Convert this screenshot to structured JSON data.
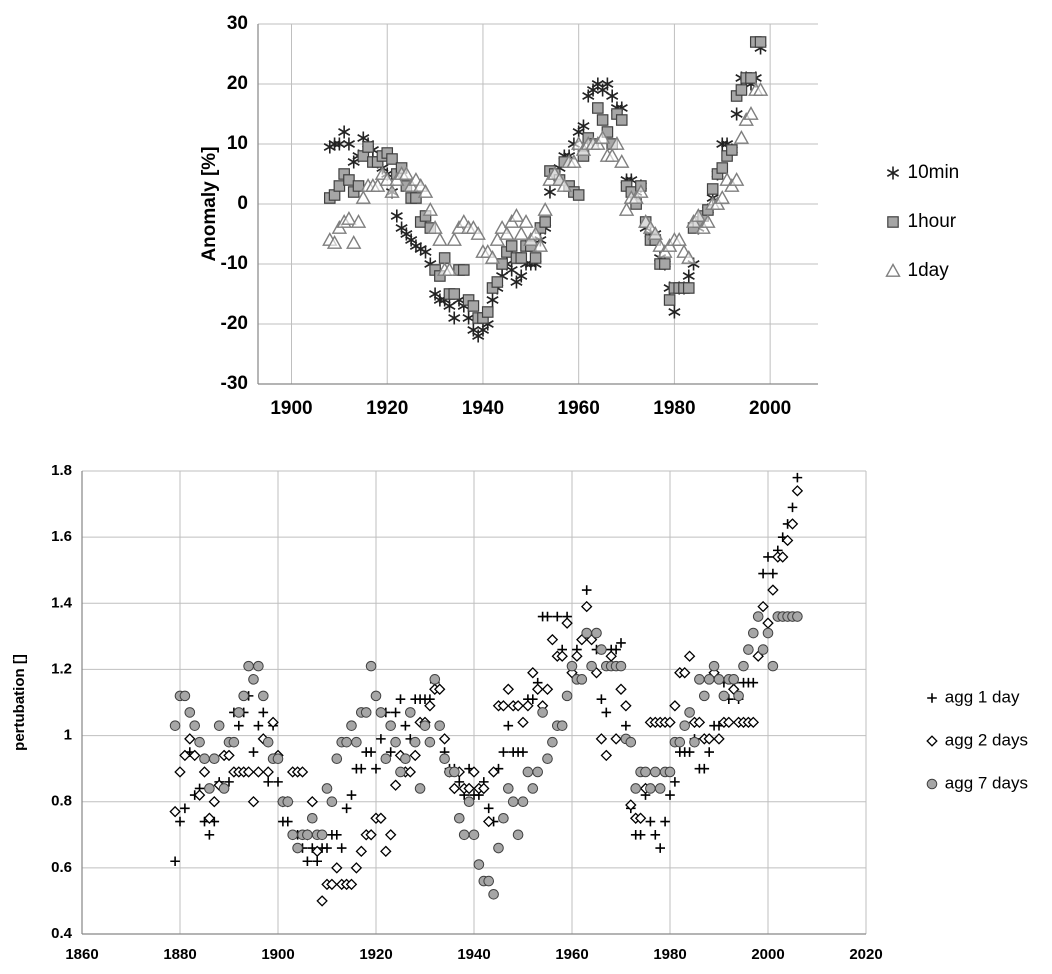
{
  "chart_data": [
    {
      "type": "scatter",
      "y_label": "Anomaly [%]",
      "x": [
        1908,
        1909,
        1910,
        1911,
        1912,
        1913,
        1914,
        1915,
        1916,
        1917,
        1918,
        1919,
        1920,
        1921,
        1922,
        1923,
        1924,
        1925,
        1926,
        1927,
        1928,
        1929,
        1930,
        1931,
        1932,
        1933,
        1934,
        1935,
        1936,
        1937,
        1938,
        1939,
        1940,
        1941,
        1942,
        1943,
        1944,
        1945,
        1946,
        1947,
        1948,
        1949,
        1950,
        1951,
        1952,
        1953,
        1954,
        1955,
        1956,
        1957,
        1958,
        1959,
        1960,
        1961,
        1962,
        1963,
        1964,
        1965,
        1966,
        1967,
        1968,
        1969,
        1970,
        1971,
        1972,
        1973,
        1974,
        1975,
        1976,
        1977,
        1978,
        1979,
        1980,
        1981,
        1982,
        1983,
        1984,
        1985,
        1986,
        1987,
        1988,
        1989,
        1990,
        1991,
        1992,
        1993,
        1994,
        1995,
        1996,
        1997,
        1998
      ],
      "series": [
        {
          "name": "10min",
          "color": "#222222",
          "marker": "asterisk",
          "values": [
            9.5,
            10,
            10,
            12,
            10,
            7,
            8,
            11,
            10,
            9,
            7,
            6,
            5,
            2,
            -2,
            -4,
            -5,
            -6,
            -7,
            -7.5,
            -8,
            -10,
            -15,
            -16,
            -16,
            -17,
            -19,
            -16,
            -17,
            -19,
            -21,
            -22,
            -21,
            -20,
            -16,
            -14,
            -12,
            -10,
            -11,
            -13,
            -12,
            -10,
            -10,
            -10,
            -6,
            -4,
            2,
            5,
            6,
            8,
            8,
            10,
            12,
            13,
            18,
            19,
            20,
            19,
            20,
            18,
            16,
            16,
            4,
            4,
            2,
            3,
            -4,
            -5,
            -5,
            -9,
            -10,
            -14,
            -18,
            -14,
            -14,
            -12,
            -10,
            -4,
            -2,
            -1,
            1,
            5,
            10,
            10,
            9,
            15,
            21,
            21,
            20,
            21,
            26
          ]
        },
        {
          "name": "1hour",
          "color": "#a6a6a6",
          "marker": "square",
          "values": [
            1,
            1.5,
            3,
            5,
            4,
            2,
            3,
            8,
            9.5,
            7,
            7,
            8,
            8.5,
            7.5,
            5,
            6,
            3,
            1,
            1,
            -3,
            -2,
            -4,
            -11,
            -12,
            -9,
            -15,
            -15,
            -11,
            -11,
            -16,
            -17,
            -19,
            -19,
            -18,
            -14,
            -13,
            -10,
            -8,
            -7,
            -9,
            -9,
            -7,
            -7,
            -9,
            -4,
            -3,
            5.5,
            5,
            4,
            7,
            3,
            2,
            1.5,
            8,
            11,
            10,
            16,
            14,
            12,
            10,
            15,
            14,
            3,
            2,
            0,
            3,
            -3,
            -6,
            -6,
            -10,
            -10,
            -16,
            -14,
            -14,
            -14,
            -14,
            -4,
            -3,
            -2,
            -1,
            2.5,
            5,
            6,
            8,
            9,
            18,
            19,
            21,
            21,
            27,
            27
          ]
        },
        {
          "name": "1day",
          "color": "#7f7f7f",
          "marker": "triangle",
          "values": [
            -6,
            -6.5,
            -4,
            -3,
            -2.5,
            -6.5,
            -3,
            1,
            3,
            3,
            3,
            5,
            4,
            2,
            4,
            5,
            5,
            3,
            4,
            3,
            2,
            -1,
            -4,
            -6,
            -11,
            -11,
            -6,
            -4,
            -3,
            -4,
            -4,
            -5,
            -8,
            -8,
            -9,
            -6,
            -4,
            -5,
            -3,
            -2,
            -5,
            -3,
            -6,
            -5,
            -7,
            -1,
            4,
            5,
            4,
            3,
            7,
            7,
            10,
            9,
            10,
            10,
            10,
            11,
            8,
            8,
            10,
            7,
            -1,
            1,
            1,
            2,
            -3,
            -4,
            -5,
            -7,
            -8,
            -7,
            -6,
            -6,
            -8,
            -9,
            -3,
            -2,
            -4,
            -3,
            0,
            0,
            1,
            4,
            3,
            4,
            11,
            14,
            15,
            19,
            19
          ]
        }
      ],
      "xlim": [
        1893,
        2010
      ],
      "xticks": [
        1900,
        1920,
        1940,
        1960,
        1980,
        2000
      ],
      "ylim": [
        -30,
        30
      ],
      "yticks": [
        -30,
        -20,
        -10,
        0,
        10,
        20,
        30
      ],
      "grid": true,
      "legend": "right"
    },
    {
      "type": "scatter",
      "y_label": "pertubation []",
      "x": [
        1879,
        1880,
        1881,
        1882,
        1883,
        1884,
        1885,
        1886,
        1887,
        1888,
        1889,
        1890,
        1891,
        1892,
        1893,
        1894,
        1895,
        1896,
        1897,
        1898,
        1899,
        1900,
        1901,
        1902,
        1903,
        1904,
        1905,
        1906,
        1907,
        1908,
        1909,
        1910,
        1911,
        1912,
        1913,
        1914,
        1915,
        1916,
        1917,
        1918,
        1919,
        1920,
        1921,
        1922,
        1923,
        1924,
        1925,
        1926,
        1927,
        1928,
        1929,
        1930,
        1931,
        1932,
        1933,
        1934,
        1935,
        1936,
        1937,
        1938,
        1939,
        1940,
        1941,
        1942,
        1943,
        1944,
        1945,
        1946,
        1947,
        1948,
        1949,
        1950,
        1951,
        1952,
        1953,
        1954,
        1955,
        1956,
        1957,
        1958,
        1959,
        1960,
        1961,
        1962,
        1963,
        1964,
        1965,
        1966,
        1967,
        1968,
        1969,
        1970,
        1971,
        1972,
        1973,
        1974,
        1975,
        1976,
        1977,
        1978,
        1979,
        1980,
        1981,
        1982,
        1983,
        1984,
        1985,
        1986,
        1987,
        1988,
        1989,
        1990,
        1991,
        1992,
        1993,
        1994,
        1995,
        1996,
        1997,
        1998,
        1999,
        2000,
        2001,
        2002,
        2003,
        2004,
        2005,
        2006
      ],
      "series": [
        {
          "name": "agg 1 day",
          "color": "#000000",
          "marker": "plus",
          "values": [
            0.62,
            0.74,
            0.78,
            0.95,
            0.82,
            0.84,
            0.74,
            0.7,
            0.74,
            0.86,
            0.94,
            0.86,
            1.07,
            1.03,
            1.07,
            1.12,
            0.95,
            1.03,
            1.07,
            0.86,
            1.03,
            0.86,
            0.74,
            0.74,
            0.7,
            0.7,
            0.66,
            0.62,
            0.66,
            0.62,
            0.66,
            0.66,
            0.7,
            0.7,
            0.66,
            0.78,
            0.82,
            0.9,
            0.9,
            0.95,
            0.95,
            0.9,
            0.99,
            1.07,
            0.95,
            1.07,
            1.11,
            1.03,
            0.99,
            1.11,
            1.11,
            1.11,
            1.11,
            1.16,
            1.03,
            0.95,
            0.9,
            0.9,
            0.86,
            0.82,
            0.9,
            0.82,
            0.82,
            0.86,
            0.78,
            0.74,
            0.9,
            0.95,
            1.03,
            0.95,
            0.95,
            0.95,
            1.11,
            1.11,
            1.16,
            1.36,
            1.36,
            1.29,
            1.36,
            1.26,
            1.36,
            1.19,
            1.26,
            1.29,
            1.44,
            1.29,
            1.26,
            1.11,
            1.07,
            1.26,
            1.26,
            1.28,
            1.03,
            0.78,
            0.7,
            0.7,
            0.82,
            0.74,
            0.7,
            0.66,
            0.74,
            0.82,
            0.86,
            0.95,
            0.95,
            0.95,
            0.99,
            0.9,
            0.9,
            0.95,
            1.03,
            1.03,
            1.16,
            1.11,
            1.16,
            1.11,
            1.16,
            1.16,
            1.16,
            1.36,
            1.49,
            1.54,
            1.49,
            1.56,
            1.6,
            1.64,
            1.69,
            1.78
          ]
        },
        {
          "name": "agg 2 days",
          "color": "#000000",
          "marker": "diamond",
          "values": [
            0.77,
            0.89,
            0.94,
            0.99,
            0.94,
            0.82,
            0.89,
            0.75,
            0.8,
            0.85,
            0.94,
            0.94,
            0.89,
            0.89,
            0.89,
            0.89,
            0.8,
            0.89,
            0.99,
            0.89,
            1.04,
            0.94,
            0.8,
            0.8,
            0.89,
            0.89,
            0.89,
            0.7,
            0.8,
            0.65,
            0.5,
            0.55,
            0.55,
            0.6,
            0.55,
            0.55,
            0.55,
            0.6,
            0.65,
            0.7,
            0.7,
            0.75,
            0.75,
            0.65,
            0.7,
            0.85,
            0.94,
            0.89,
            0.89,
            0.94,
            1.04,
            1.04,
            1.09,
            1.14,
            1.14,
            0.99,
            0.89,
            0.84,
            0.89,
            0.84,
            0.84,
            0.89,
            0.84,
            0.84,
            0.74,
            0.89,
            1.09,
            1.09,
            1.14,
            1.09,
            1.09,
            1.04,
            1.09,
            1.19,
            1.14,
            1.09,
            1.14,
            1.29,
            1.24,
            1.24,
            1.34,
            1.19,
            1.24,
            1.29,
            1.39,
            1.29,
            1.19,
            0.99,
            0.94,
            1.24,
            0.99,
            1.14,
            1.09,
            0.79,
            0.75,
            0.75,
            0.84,
            1.04,
            1.04,
            1.04,
            1.04,
            1.04,
            1.09,
            1.19,
            1.19,
            1.24,
            1.04,
            1.04,
            0.99,
            0.99,
            1.19,
            0.99,
            1.04,
            1.04,
            1.14,
            1.04,
            1.04,
            1.04,
            1.04,
            1.24,
            1.39,
            1.34,
            1.44,
            1.54,
            1.54,
            1.59,
            1.64,
            1.74
          ]
        },
        {
          "name": "agg 7 days",
          "color": "#a6a6a6",
          "marker": "circle",
          "values": [
            1.03,
            1.12,
            1.12,
            1.07,
            1.03,
            0.98,
            0.93,
            0.84,
            0.93,
            1.03,
            0.84,
            0.98,
            0.98,
            1.07,
            1.12,
            1.21,
            1.17,
            1.21,
            1.12,
            0.98,
            0.93,
            0.93,
            0.8,
            0.8,
            0.7,
            0.66,
            0.7,
            0.7,
            0.75,
            0.7,
            0.7,
            0.84,
            0.8,
            0.93,
            0.98,
            0.98,
            1.03,
            0.98,
            1.07,
            1.07,
            1.21,
            1.12,
            1.07,
            0.93,
            1.03,
            0.98,
            0.89,
            0.93,
            1.07,
            0.98,
            0.84,
            1.03,
            0.98,
            1.17,
            1.03,
            0.93,
            0.89,
            0.89,
            0.75,
            0.7,
            0.8,
            0.7,
            0.61,
            0.56,
            0.56,
            0.52,
            0.66,
            0.75,
            0.84,
            0.8,
            0.7,
            0.8,
            0.89,
            0.84,
            0.89,
            1.07,
            0.93,
            0.98,
            1.03,
            1.03,
            1.12,
            1.21,
            1.17,
            1.17,
            1.31,
            1.21,
            1.31,
            1.26,
            1.21,
            1.21,
            1.21,
            1.21,
            0.99,
            0.98,
            0.84,
            0.89,
            0.89,
            0.84,
            0.89,
            0.84,
            0.89,
            0.89,
            0.98,
            0.98,
            1.03,
            1.07,
            0.98,
            1.17,
            1.12,
            1.17,
            1.21,
            1.17,
            1.12,
            1.17,
            1.17,
            1.12,
            1.21,
            1.26,
            1.31,
            1.36,
            1.26,
            1.31,
            1.21,
            1.36,
            1.36,
            1.36,
            1.36,
            1.36
          ]
        }
      ],
      "xlim": [
        1860,
        2020
      ],
      "xticks": [
        1860,
        1880,
        1900,
        1920,
        1940,
        1960,
        1980,
        2000,
        2020
      ],
      "ylim": [
        0.4,
        1.8
      ],
      "yticks": [
        0.4,
        0.6,
        0.8,
        1,
        1.2,
        1.4,
        1.6,
        1.8
      ],
      "grid": true,
      "legend": "right"
    }
  ]
}
